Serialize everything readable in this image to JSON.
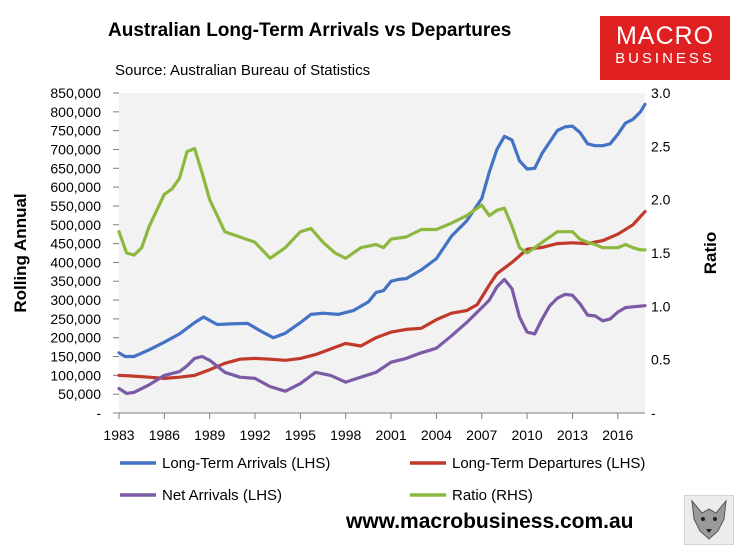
{
  "title": "Australian Long-Term Arrivals vs Departures",
  "source": "Source: Australian Bureau of Statistics",
  "logo": {
    "line1": "MACRO",
    "line2": "BUSINESS"
  },
  "website": "www.macrobusiness.com.au",
  "chart_data": {
    "type": "line",
    "title": "Australian Long-Term Arrivals vs Departures",
    "y_left_label": "Rolling Annual",
    "y_right_label": "Ratio",
    "y_left_range": [
      0,
      850000
    ],
    "y_right_range": [
      0,
      3.0
    ],
    "y_left_ticks": [
      "-",
      "50,000",
      "100,000",
      "150,000",
      "200,000",
      "250,000",
      "300,000",
      "350,000",
      "400,000",
      "450,000",
      "500,000",
      "550,000",
      "600,000",
      "650,000",
      "700,000",
      "750,000",
      "800,000",
      "850,000"
    ],
    "y_right_ticks": [
      "-",
      "0.5",
      "1.0",
      "1.5",
      "2.0",
      "2.5",
      "3.0"
    ],
    "x_range": [
      1983,
      2017.8
    ],
    "x_ticks": [
      "1983",
      "1986",
      "1989",
      "1992",
      "1995",
      "1998",
      "2001",
      "2004",
      "2007",
      "2010",
      "2013",
      "2016"
    ],
    "series": [
      {
        "name": "Long-Term Arrivals (LHS)",
        "axis": "left",
        "color": "#4472c4",
        "x": [
          1983,
          1983.4,
          1984,
          1985,
          1986,
          1987,
          1988,
          1988.6,
          1989.5,
          1990.5,
          1991.5,
          1992.5,
          1993.2,
          1994,
          1995,
          1995.7,
          1996.5,
          1997.5,
          1998.5,
          1999.5,
          2000,
          2000.5,
          2001,
          2001.5,
          2002,
          2003,
          2004,
          2005,
          2006,
          2007,
          2007.5,
          2008,
          2008.5,
          2009,
          2009.5,
          2010,
          2010.5,
          2011,
          2011.5,
          2012,
          2012.5,
          2013,
          2013.5,
          2014,
          2014.5,
          2015,
          2015.5,
          2016,
          2016.5,
          2017,
          2017.5,
          2017.8
        ],
        "values": [
          160000,
          150000,
          150000,
          168000,
          188000,
          210000,
          240000,
          255000,
          235000,
          237000,
          238000,
          215000,
          200000,
          212000,
          240000,
          262000,
          265000,
          262000,
          272000,
          295000,
          320000,
          325000,
          350000,
          355000,
          357000,
          380000,
          410000,
          470000,
          510000,
          570000,
          640000,
          700000,
          735000,
          725000,
          670000,
          648000,
          650000,
          690000,
          720000,
          750000,
          760000,
          762000,
          745000,
          715000,
          710000,
          710000,
          715000,
          740000,
          770000,
          780000,
          800000,
          820000
        ]
      },
      {
        "name": "Long-Term Departures (LHS)",
        "axis": "left",
        "color": "#c0392b",
        "x": [
          1983,
          1984,
          1985,
          1986,
          1987,
          1988,
          1989,
          1990,
          1991,
          1992,
          1993,
          1994,
          1995,
          1996,
          1997,
          1998,
          1999,
          2000,
          2001,
          2002,
          2003,
          2004,
          2005,
          2006,
          2006.7,
          2007.5,
          2008,
          2009,
          2010,
          2011,
          2012,
          2013,
          2014,
          2015,
          2016,
          2017,
          2017.8
        ],
        "values": [
          100000,
          98000,
          95000,
          92000,
          95000,
          100000,
          115000,
          132000,
          143000,
          145000,
          143000,
          140000,
          145000,
          155000,
          170000,
          185000,
          178000,
          200000,
          215000,
          222000,
          225000,
          248000,
          265000,
          272000,
          288000,
          340000,
          370000,
          400000,
          435000,
          440000,
          450000,
          452000,
          450000,
          458000,
          475000,
          500000,
          535000
        ]
      },
      {
        "name": "Net Arrivals (LHS)",
        "axis": "left",
        "color": "#7b5aa6",
        "x": [
          1983,
          1983.5,
          1984,
          1985,
          1986,
          1987,
          1987.5,
          1988,
          1988.5,
          1989,
          1990,
          1991,
          1992,
          1993,
          1994,
          1995,
          1996,
          1997,
          1998,
          1999,
          2000,
          2001,
          2002,
          2003,
          2004,
          2005,
          2006,
          2007,
          2007.5,
          2008,
          2008.5,
          2009,
          2009.5,
          2010,
          2010.5,
          2011,
          2011.5,
          2012,
          2012.5,
          2013,
          2013.5,
          2014,
          2014.5,
          2015,
          2015.5,
          2016,
          2016.5,
          2017,
          2017.8
        ],
        "values": [
          65000,
          52000,
          55000,
          75000,
          100000,
          110000,
          125000,
          145000,
          150000,
          140000,
          108000,
          95000,
          92000,
          70000,
          58000,
          78000,
          108000,
          100000,
          82000,
          95000,
          108000,
          135000,
          145000,
          160000,
          172000,
          205000,
          240000,
          280000,
          300000,
          335000,
          355000,
          330000,
          255000,
          215000,
          210000,
          250000,
          285000,
          305000,
          315000,
          313000,
          290000,
          260000,
          258000,
          245000,
          250000,
          268000,
          280000,
          282000,
          285000
        ]
      },
      {
        "name": "Ratio (RHS)",
        "axis": "right",
        "color": "#8db83f",
        "x": [
          1983,
          1983.5,
          1984,
          1984.5,
          1985,
          1986,
          1986.5,
          1987,
          1987.5,
          1988,
          1988.5,
          1989,
          1990,
          1991,
          1992,
          1993,
          1994,
          1995,
          1995.7,
          1996.5,
          1997.3,
          1998,
          1999,
          2000,
          2000.5,
          2001,
          2002,
          2003,
          2004,
          2005,
          2006,
          2007,
          2007.5,
          2008,
          2008.5,
          2009,
          2009.5,
          2010,
          2010.5,
          2011,
          2011.5,
          2012,
          2013,
          2013.5,
          2014,
          2014.5,
          2015,
          2016,
          2016.5,
          2017,
          2017.5,
          2017.8
        ],
        "values": [
          1.7,
          1.5,
          1.48,
          1.55,
          1.75,
          2.05,
          2.1,
          2.2,
          2.45,
          2.48,
          2.25,
          2.0,
          1.7,
          1.65,
          1.6,
          1.45,
          1.55,
          1.7,
          1.73,
          1.6,
          1.5,
          1.45,
          1.55,
          1.58,
          1.55,
          1.63,
          1.65,
          1.72,
          1.72,
          1.78,
          1.85,
          1.95,
          1.85,
          1.9,
          1.92,
          1.75,
          1.55,
          1.5,
          1.55,
          1.6,
          1.65,
          1.7,
          1.7,
          1.63,
          1.6,
          1.58,
          1.55,
          1.55,
          1.58,
          1.55,
          1.53,
          1.53
        ]
      }
    ]
  }
}
